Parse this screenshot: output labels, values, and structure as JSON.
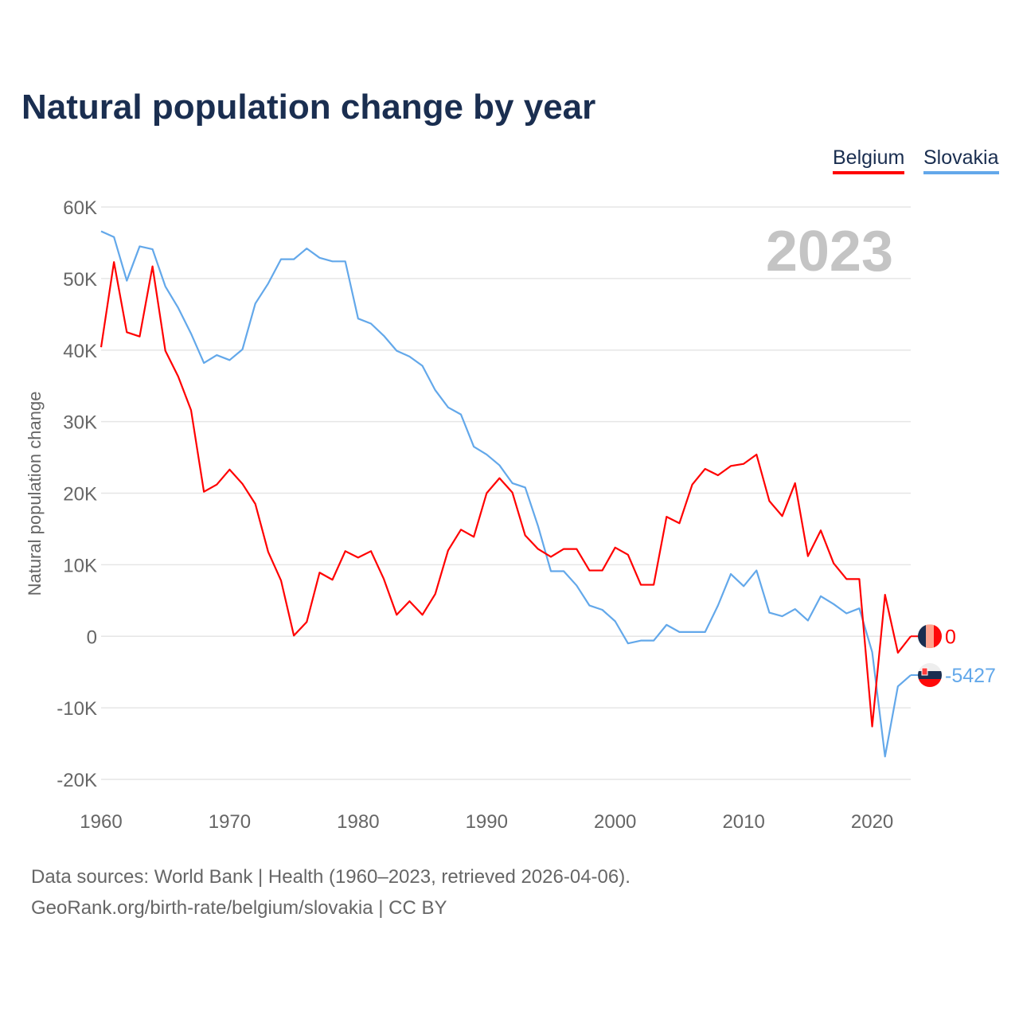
{
  "title": "Natural population change by year",
  "legend": [
    "Belgium",
    "Slovakia"
  ],
  "year_label": "2023",
  "end_labels": {
    "belgium": "0",
    "slovakia": "-5427"
  },
  "sources": [
    "Data sources: World Bank | Health (1960–2023, retrieved 2026-04-06).",
    "GeoRank.org/birth-rate/belgium/slovakia | CC BY"
  ],
  "colors": {
    "belgium": "#ff0000",
    "slovakia": "#63a8ea"
  },
  "chart_data": {
    "type": "line",
    "title": "Natural population change by year",
    "xlabel": "",
    "ylabel": "Natural population change",
    "xlim": [
      1960,
      2023
    ],
    "ylim": [
      -20000,
      60000
    ],
    "x_ticks": [
      1960,
      1970,
      1980,
      1990,
      2000,
      2010,
      2020
    ],
    "x_tick_labels": [
      "1960",
      "1970",
      "1980",
      "1990",
      "2000",
      "2010",
      "2020"
    ],
    "y_ticks": [
      -20000,
      -10000,
      0,
      10000,
      20000,
      30000,
      40000,
      50000,
      60000
    ],
    "y_tick_labels": [
      "-20K",
      "-10K",
      "0",
      "10K",
      "20K",
      "30K",
      "40K",
      "50K",
      "60K"
    ],
    "grid": true,
    "legend_position": "top-right",
    "x_start": 1960,
    "series": [
      {
        "name": "Belgium",
        "values": [
          40400,
          52300,
          42500,
          41900,
          51700,
          39900,
          36300,
          31600,
          20200,
          21200,
          23300,
          21300,
          18500,
          11800,
          7800,
          100,
          2000,
          8900,
          7900,
          11900,
          11000,
          11900,
          8000,
          3000,
          4900,
          3000,
          5900,
          12000,
          14900,
          13900,
          20000,
          22100,
          20100,
          14100,
          12200,
          11100,
          12200,
          12200,
          9200,
          9200,
          12400,
          11400,
          7200,
          7200,
          16700,
          15800,
          21200,
          23400,
          22500,
          23800,
          24100,
          25400,
          18900,
          16800,
          21400,
          11200,
          14800,
          10200,
          8000,
          8000,
          -12600,
          5800,
          -2300,
          0
        ]
      },
      {
        "name": "Slovakia",
        "values": [
          56600,
          55800,
          49700,
          54500,
          54100,
          48900,
          45900,
          42300,
          38200,
          39300,
          38600,
          40100,
          46500,
          49300,
          52700,
          52700,
          54200,
          52900,
          52400,
          52400,
          44400,
          43700,
          42000,
          39900,
          39100,
          37800,
          34400,
          32000,
          31000,
          26500,
          25400,
          23900,
          21400,
          20800,
          15400,
          9100,
          9100,
          7100,
          4300,
          3700,
          2100,
          -1000,
          -600,
          -600,
          1600,
          600,
          600,
          600,
          4300,
          8700,
          7000,
          9200,
          3300,
          2800,
          3800,
          2200,
          5600,
          4500,
          3200,
          3900,
          -2200,
          -16800,
          -7000,
          -5427
        ]
      }
    ]
  }
}
